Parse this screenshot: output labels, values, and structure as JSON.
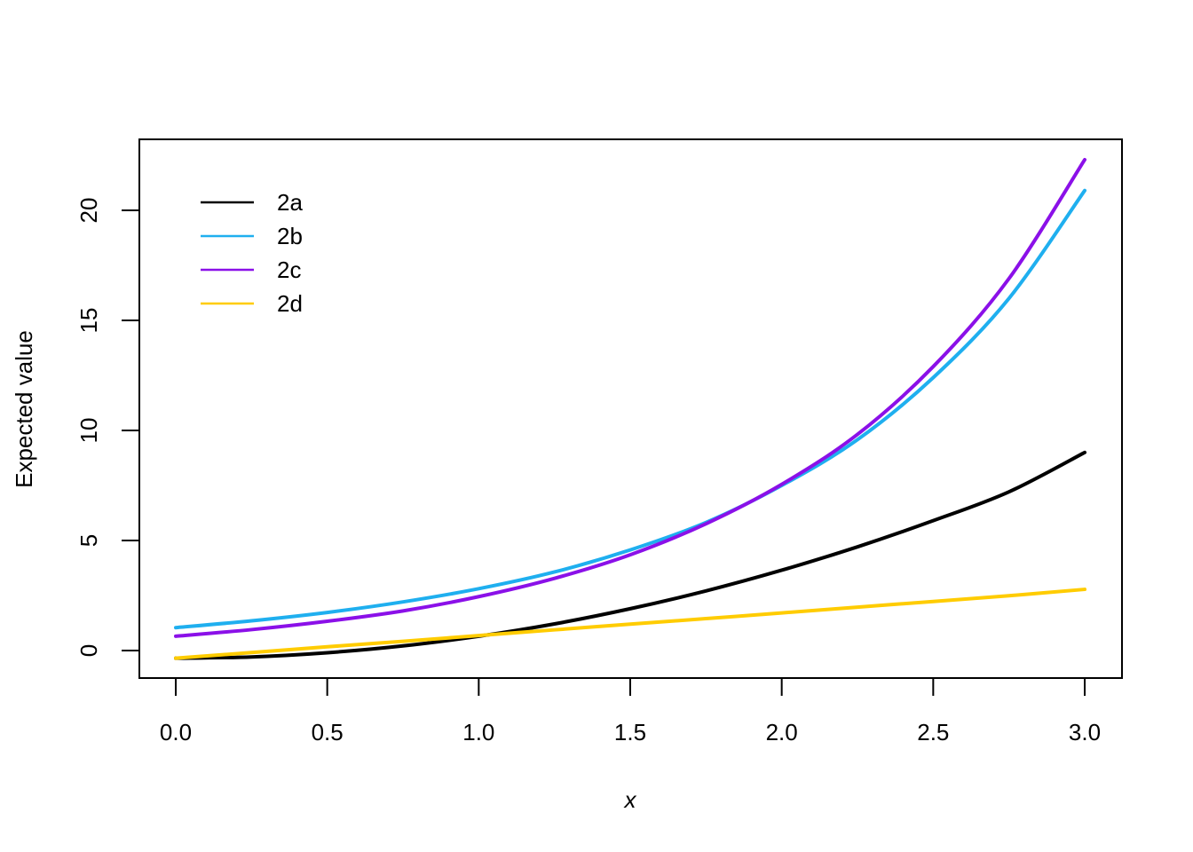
{
  "chart_data": {
    "type": "line",
    "title": "",
    "xlabel": "x",
    "ylabel": "Expected value",
    "xlim": [
      0,
      3
    ],
    "ylim": [
      -1.2,
      23.3
    ],
    "x_ticks": [
      "0.0",
      "0.5",
      "1.0",
      "1.5",
      "2.0",
      "2.5",
      "3.0"
    ],
    "y_ticks": [
      "0",
      "5",
      "10",
      "15",
      "20"
    ],
    "grid": false,
    "legend_position": "top-left",
    "x": [
      0,
      0.25,
      0.5,
      0.75,
      1.0,
      1.25,
      1.5,
      1.75,
      2.0,
      2.25,
      2.5,
      2.75,
      3.0
    ],
    "series": [
      {
        "name": "2a",
        "color": "#000000",
        "values": [
          -0.35,
          -0.29,
          -0.1,
          0.21,
          0.65,
          1.21,
          1.9,
          2.71,
          3.65,
          4.71,
          5.9,
          7.21,
          9.0
        ]
      },
      {
        "name": "2b",
        "color": "#1FAFEF",
        "values": [
          1.04,
          1.35,
          1.73,
          2.21,
          2.81,
          3.57,
          4.57,
          5.82,
          7.5,
          9.58,
          12.4,
          16.0,
          20.9
        ]
      },
      {
        "name": "2c",
        "color": "#8B10E8",
        "values": [
          0.65,
          0.95,
          1.33,
          1.8,
          2.45,
          3.28,
          4.35,
          5.76,
          7.55,
          9.82,
          12.9,
          16.9,
          22.3
        ]
      },
      {
        "name": "2d",
        "color": "#FFCC00",
        "values": [
          -0.35,
          -0.09,
          0.17,
          0.42,
          0.68,
          0.94,
          1.2,
          1.45,
          1.71,
          1.97,
          2.23,
          2.49,
          2.78
        ]
      }
    ]
  }
}
